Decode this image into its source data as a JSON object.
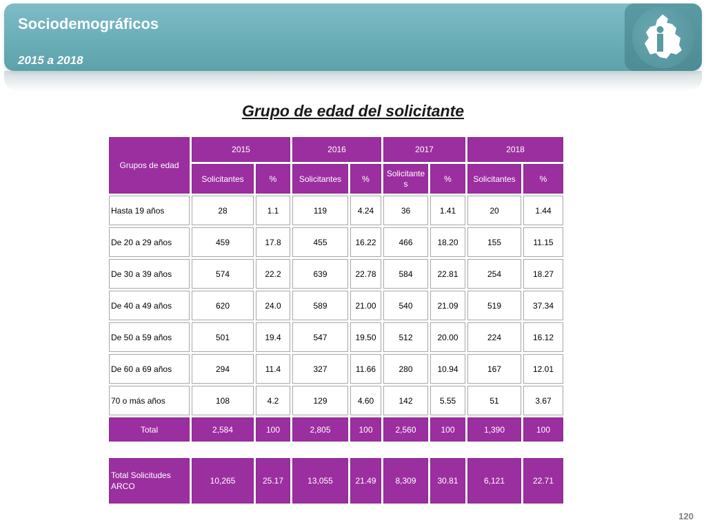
{
  "header": {
    "title": "Sociodemográficos",
    "subtitle": "2015 a 2018"
  },
  "heading": "Grupo de edad del solicitante",
  "table": {
    "row_header": "Grupos de edad",
    "years": [
      "2015",
      "2016",
      "2017",
      "2018"
    ],
    "sub_headers": {
      "y2015": [
        "Solicitantes",
        "%"
      ],
      "y2016": [
        "Solicitantes",
        "%"
      ],
      "y2017": [
        "Solicitante\ns",
        "%"
      ],
      "y2018": [
        "Solicitantes",
        "%"
      ]
    },
    "rows": [
      {
        "label": "Hasta 19 años",
        "cells": [
          "28",
          "1.1",
          "119",
          "4.24",
          "36",
          "1.41",
          "20",
          "1.44"
        ]
      },
      {
        "label": "De 20 a 29 años",
        "cells": [
          "459",
          "17.8",
          "455",
          "16.22",
          "466",
          "18.20",
          "155",
          "11.15"
        ]
      },
      {
        "label": "De 30 a 39 años",
        "cells": [
          "574",
          "22.2",
          "639",
          "22.78",
          "584",
          "22.81",
          "254",
          "18.27"
        ]
      },
      {
        "label": "De 40 a 49 años",
        "cells": [
          "620",
          "24.0",
          "589",
          "21.00",
          "540",
          "21.09",
          "519",
          "37.34"
        ]
      },
      {
        "label": "De 50 a 59 años",
        "cells": [
          "501",
          "19.4",
          "547",
          "19.50",
          "512",
          "20.00",
          "224",
          "16.12"
        ]
      },
      {
        "label": "De 60 a 69 años",
        "cells": [
          "294",
          "11.4",
          "327",
          "11.66",
          "280",
          "10.94",
          "167",
          "12.01"
        ]
      },
      {
        "label": "70 o más años",
        "cells": [
          "108",
          "4.2",
          "129",
          "4.60",
          "142",
          "5.55",
          "51",
          "3.67"
        ]
      }
    ],
    "total_row": {
      "label": "Total",
      "cells": [
        "2,584",
        "100",
        "2,805",
        "100",
        "2,560",
        "100",
        "1,390",
        "100"
      ]
    }
  },
  "arco": {
    "label": "Total Solicitudes ARCO",
    "cells": [
      "10,265",
      "25.17",
      "13,055",
      "21.49",
      "8,309",
      "30.81",
      "6,121",
      "22.71"
    ]
  },
  "page_number": "120",
  "colors": {
    "header": "#6aaeb8",
    "purple": "#9b2f9f",
    "logo_box": "#4e8c95"
  }
}
